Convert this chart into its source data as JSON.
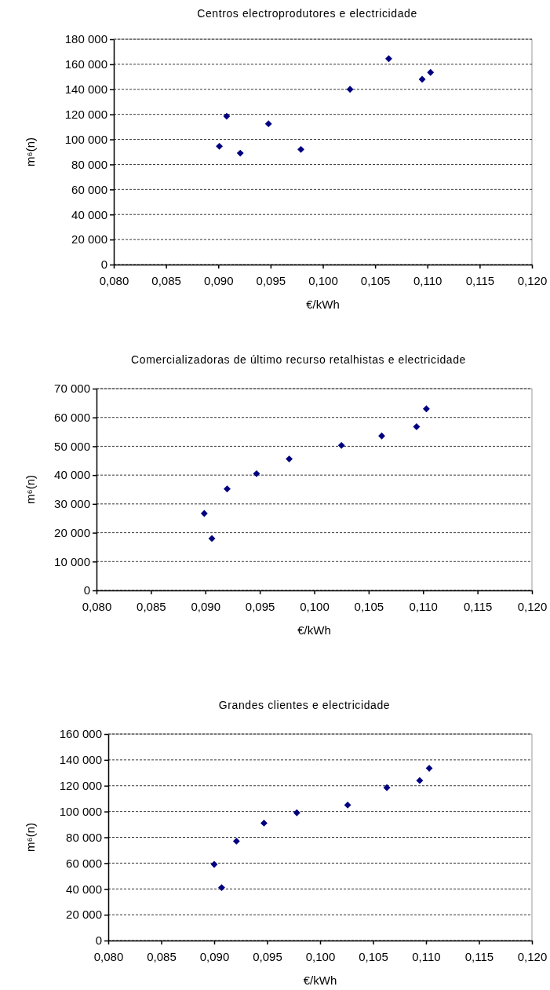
{
  "chart_data": [
    {
      "type": "scatter",
      "title": "Centros electroprodutores e electricidade",
      "xlabel": "€/kWh",
      "ylabel": "m⁶(n)",
      "marker": "diamond",
      "grid": "y",
      "x": [
        0.0901,
        0.0908,
        0.0921,
        0.0948,
        0.0979,
        0.1026,
        0.1063,
        0.1095,
        0.1103
      ],
      "series": [
        {
          "color": "#000080",
          "values": [
            94500,
            118500,
            89000,
            112500,
            92000,
            140000,
            164500,
            148000,
            153500
          ]
        }
      ],
      "xlim": [
        0.08,
        0.12
      ],
      "xticks": [
        {
          "value": 0.08,
          "label": "0,080"
        },
        {
          "value": 0.085,
          "label": "0,085"
        },
        {
          "value": 0.09,
          "label": "0,090"
        },
        {
          "value": 0.095,
          "label": "0,095"
        },
        {
          "value": 0.1,
          "label": "0,100"
        },
        {
          "value": 0.105,
          "label": "0,105"
        },
        {
          "value": 0.11,
          "label": "0,110"
        },
        {
          "value": 0.115,
          "label": "0,115"
        },
        {
          "value": 0.12,
          "label": "0,120"
        }
      ],
      "ylim": [
        0,
        180000
      ],
      "yticks": [
        {
          "value": 0,
          "label": "0"
        },
        {
          "value": 20000,
          "label": "20 000"
        },
        {
          "value": 40000,
          "label": "40 000"
        },
        {
          "value": 60000,
          "label": "60 000"
        },
        {
          "value": 80000,
          "label": "80 000"
        },
        {
          "value": 100000,
          "label": "100 000"
        },
        {
          "value": 120000,
          "label": "120 000"
        },
        {
          "value": 140000,
          "label": "140 000"
        },
        {
          "value": 160000,
          "label": "160 000"
        },
        {
          "value": 180000,
          "label": "180 000"
        }
      ]
    },
    {
      "type": "scatter",
      "title": "Comercializadoras de último recurso retalhistas e electricidade",
      "xlabel": "€/kWh",
      "ylabel": "m⁶(n)",
      "marker": "diamond",
      "grid": "y",
      "x": [
        0.0899,
        0.0906,
        0.092,
        0.0947,
        0.0977,
        0.1025,
        0.1062,
        0.1094,
        0.1103
      ],
      "series": [
        {
          "color": "#000080",
          "values": [
            26700,
            18000,
            35200,
            40500,
            45600,
            50300,
            53600,
            56800,
            63000
          ]
        }
      ],
      "xlim": [
        0.08,
        0.12
      ],
      "xticks": [
        {
          "value": 0.08,
          "label": "0,080"
        },
        {
          "value": 0.085,
          "label": "0,085"
        },
        {
          "value": 0.09,
          "label": "0,090"
        },
        {
          "value": 0.095,
          "label": "0,095"
        },
        {
          "value": 0.1,
          "label": "0,100"
        },
        {
          "value": 0.105,
          "label": "0,105"
        },
        {
          "value": 0.11,
          "label": "0,110"
        },
        {
          "value": 0.115,
          "label": "0,115"
        },
        {
          "value": 0.12,
          "label": "0,120"
        }
      ],
      "ylim": [
        0,
        70000
      ],
      "yticks": [
        {
          "value": 0,
          "label": "0"
        },
        {
          "value": 10000,
          "label": "10 000"
        },
        {
          "value": 20000,
          "label": "20 000"
        },
        {
          "value": 30000,
          "label": "30 000"
        },
        {
          "value": 40000,
          "label": "40 000"
        },
        {
          "value": 50000,
          "label": "50 000"
        },
        {
          "value": 60000,
          "label": "60 000"
        },
        {
          "value": 70000,
          "label": "70 000"
        }
      ]
    },
    {
      "type": "scatter",
      "title": "Grandes clientes e electricidade",
      "xlabel": "€/kWh",
      "ylabel": "m⁶(n)",
      "marker": "diamond",
      "grid": "y",
      "x": [
        0.09,
        0.0907,
        0.0921,
        0.0947,
        0.0978,
        0.1026,
        0.1063,
        0.1094,
        0.1103
      ],
      "series": [
        {
          "color": "#000080",
          "values": [
            59000,
            41000,
            77000,
            91000,
            99000,
            105000,
            118500,
            124000,
            133500
          ]
        }
      ],
      "xlim": [
        0.08,
        0.12
      ],
      "xticks": [
        {
          "value": 0.08,
          "label": "0,080"
        },
        {
          "value": 0.085,
          "label": "0,085"
        },
        {
          "value": 0.09,
          "label": "0,090"
        },
        {
          "value": 0.095,
          "label": "0,095"
        },
        {
          "value": 0.1,
          "label": "0,100"
        },
        {
          "value": 0.105,
          "label": "0,105"
        },
        {
          "value": 0.11,
          "label": "0,110"
        },
        {
          "value": 0.115,
          "label": "0,115"
        },
        {
          "value": 0.12,
          "label": "0,120"
        }
      ],
      "ylim": [
        0,
        160000
      ],
      "yticks": [
        {
          "value": 0,
          "label": "0"
        },
        {
          "value": 20000,
          "label": "20 000"
        },
        {
          "value": 40000,
          "label": "40 000"
        },
        {
          "value": 60000,
          "label": "60 000"
        },
        {
          "value": 80000,
          "label": "80 000"
        },
        {
          "value": 100000,
          "label": "100 000"
        },
        {
          "value": 120000,
          "label": "120 000"
        },
        {
          "value": 140000,
          "label": "140 000"
        },
        {
          "value": 160000,
          "label": "160 000"
        }
      ]
    }
  ]
}
